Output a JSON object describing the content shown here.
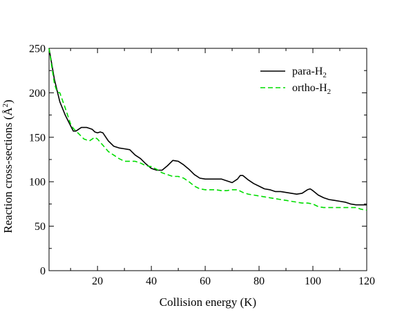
{
  "chart_data": {
    "type": "line",
    "title": "",
    "xlabel": "Collision energy (K)",
    "ylabel": "Reaction cross-sections (Å²)",
    "ylabel_parts": {
      "main": "Reaction cross-sections (Å",
      "sup": "2",
      "close": ")"
    },
    "xlim": [
      2,
      120
    ],
    "ylim": [
      0,
      250
    ],
    "xticks": [
      20,
      40,
      60,
      80,
      100,
      120
    ],
    "yticks": [
      0,
      50,
      100,
      150,
      200,
      250
    ],
    "grid": false,
    "legend_position": "top-right",
    "series": [
      {
        "name": "para-H2",
        "legend_parts": {
          "main": "para-H",
          "sub": "2"
        },
        "color": "#000000",
        "dash": "solid",
        "x": [
          2,
          4,
          6,
          8,
          10,
          11,
          12,
          13,
          14,
          15,
          16,
          17,
          18,
          19,
          20,
          21,
          22,
          24,
          26,
          28,
          30,
          32,
          34,
          36,
          38,
          40,
          42,
          44,
          46,
          48,
          50,
          52,
          54,
          56,
          58,
          60,
          62,
          64,
          66,
          68,
          70,
          72,
          73,
          74,
          76,
          78,
          80,
          82,
          84,
          86,
          88,
          90,
          92,
          94,
          96,
          98,
          99,
          100,
          102,
          104,
          106,
          108,
          110,
          112,
          114,
          116,
          118,
          120
        ],
        "y": [
          250,
          215,
          190,
          175,
          163,
          157,
          157,
          159,
          161,
          161,
          161,
          160,
          159,
          156,
          155,
          156,
          155,
          146,
          140,
          138,
          137,
          136,
          130,
          126,
          120,
          115,
          113,
          113,
          118,
          124,
          123,
          119,
          114,
          108,
          104,
          103,
          103,
          103,
          103,
          101,
          99,
          103,
          107,
          107,
          102,
          98,
          95,
          92,
          91,
          89,
          89,
          88,
          87,
          86,
          87,
          91,
          92,
          90,
          85,
          82,
          80,
          79,
          78,
          77,
          75,
          74,
          74,
          74
        ]
      },
      {
        "name": "ortho-H2",
        "legend_parts": {
          "main": "ortho-H",
          "sub": "2"
        },
        "color": "#00dd00",
        "dash": "dashed",
        "x": [
          2,
          4,
          5,
          6,
          8,
          10,
          11,
          12,
          13,
          14,
          15,
          16,
          17,
          18,
          19,
          20,
          22,
          24,
          26,
          28,
          30,
          32,
          34,
          36,
          38,
          40,
          42,
          44,
          46,
          48,
          50,
          52,
          54,
          56,
          58,
          60,
          62,
          64,
          66,
          68,
          70,
          72,
          74,
          76,
          78,
          80,
          82,
          84,
          86,
          88,
          90,
          92,
          94,
          96,
          98,
          100,
          102,
          104,
          106,
          108,
          110,
          112,
          114,
          116,
          118,
          120
        ],
        "y": [
          250,
          210,
          201,
          200,
          183,
          165,
          160,
          157,
          154,
          151,
          148,
          147,
          146,
          148,
          150,
          148,
          141,
          134,
          130,
          126,
          123,
          123,
          123,
          121,
          118,
          117,
          114,
          110,
          108,
          106,
          106,
          104,
          100,
          95,
          92,
          91,
          91,
          91,
          90,
          90,
          91,
          91,
          88,
          86,
          85,
          84,
          83,
          82,
          81,
          80,
          79,
          78,
          77,
          76,
          76,
          75,
          72,
          71,
          71,
          71,
          71,
          71,
          71,
          71,
          69,
          68
        ]
      }
    ]
  }
}
